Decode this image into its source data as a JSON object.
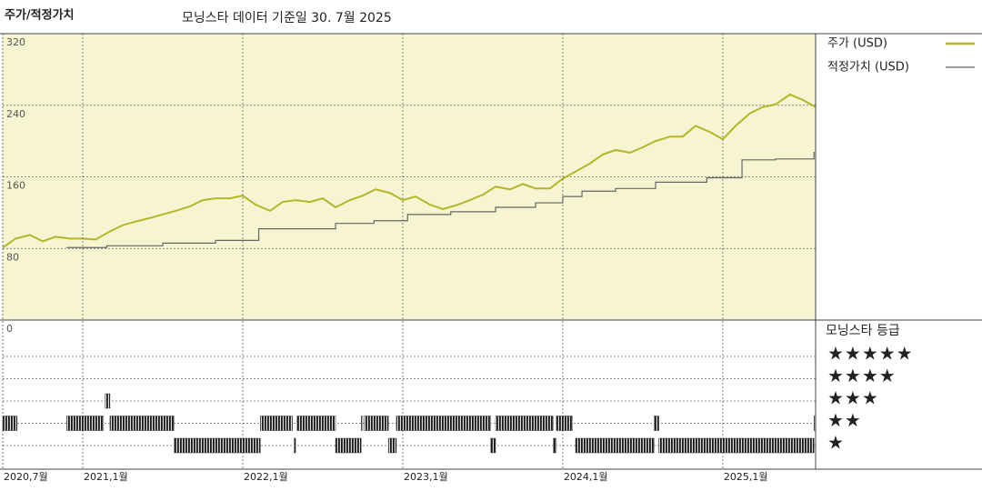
{
  "header": {
    "title": "주가/적정가치",
    "subtitle": "모닝스타 데이터 기준일 30. 7월 2025"
  },
  "chart_data": [
    {
      "type": "line",
      "background": "#f7f4d2",
      "grid": true,
      "xlim": [
        2020.5,
        2025.58
      ],
      "ylim": [
        0,
        320
      ],
      "yticks": [
        0,
        80,
        160,
        240,
        320
      ],
      "x": [
        2020.5,
        2020.58,
        2020.67,
        2020.75,
        2020.83,
        2020.92,
        2021,
        2021.08,
        2021.17,
        2021.25,
        2021.33,
        2021.42,
        2021.5,
        2021.58,
        2021.67,
        2021.75,
        2021.83,
        2021.92,
        2022,
        2022.08,
        2022.17,
        2022.25,
        2022.33,
        2022.42,
        2022.5,
        2022.58,
        2022.67,
        2022.75,
        2022.83,
        2022.92,
        2023,
        2023.08,
        2023.17,
        2023.25,
        2023.33,
        2023.42,
        2023.5,
        2023.58,
        2023.67,
        2023.75,
        2023.83,
        2023.92,
        2024,
        2024.08,
        2024.17,
        2024.25,
        2024.33,
        2024.42,
        2024.5,
        2024.58,
        2024.67,
        2024.75,
        2024.83,
        2024.92,
        2025,
        2025.08,
        2025.17,
        2025.25,
        2025.33,
        2025.42,
        2025.5,
        2025.58
      ],
      "series": [
        {
          "name": "주가 (USD)",
          "color": "#b3b62b",
          "values": [
            81,
            91,
            95,
            88,
            93,
            91,
            91,
            90,
            99,
            106,
            110,
            114,
            118,
            122,
            127,
            134,
            136,
            136,
            139,
            129,
            122,
            132,
            134,
            132,
            136,
            126,
            134,
            139,
            146,
            142,
            134,
            138,
            129,
            124,
            128,
            134,
            140,
            149,
            146,
            152,
            147,
            147,
            158,
            166,
            175,
            185,
            190,
            187,
            193,
            200,
            205,
            205,
            217,
            210,
            202,
            217,
            231,
            238,
            241,
            252,
            246,
            238
          ]
        },
        {
          "name": "적정가치 (USD)",
          "color": "#666666",
          "step": "post",
          "x": [
            2020.9,
            2021.15,
            2021.5,
            2021.83,
            2022.1,
            2022.58,
            2022.82,
            2023.03,
            2023.3,
            2023.58,
            2023.83,
            2024,
            2024.12,
            2024.33,
            2024.58,
            2024.9,
            2025.12,
            2025.33,
            2025.57
          ],
          "values": [
            81,
            83,
            86,
            89,
            102,
            108,
            111,
            118,
            121,
            126,
            131,
            138,
            144,
            147,
            154,
            159,
            179,
            180,
            188
          ]
        }
      ]
    },
    {
      "type": "rating",
      "title": "모닝스타 등급",
      "color": "#1a1a1a",
      "categories": [
        "★★★★★",
        "★★★★",
        "★★★",
        "★★",
        "★"
      ],
      "levels": [
        5,
        4,
        3,
        2,
        1
      ],
      "xlim": [
        2020.5,
        2025.58
      ],
      "xticks": [
        {
          "value": 2020.5,
          "label": "2020,7월"
        },
        {
          "value": 2021,
          "label": "2021,1월"
        },
        {
          "value": 2022,
          "label": "2022,1월"
        },
        {
          "value": 2023,
          "label": "2023,1월"
        },
        {
          "value": 2024,
          "label": "2024,1월"
        },
        {
          "value": 2025,
          "label": "2025,1월"
        }
      ],
      "periods": [
        {
          "stars": 2,
          "from": 2020.5,
          "to": 2020.59
        },
        {
          "stars": 2,
          "from": 2020.9,
          "to": 2021.13
        },
        {
          "stars": 3,
          "from": 2021.14,
          "to": 2021.17
        },
        {
          "stars": 2,
          "from": 2021.17,
          "to": 2021.57
        },
        {
          "stars": 1,
          "from": 2021.57,
          "to": 2022.11
        },
        {
          "stars": 2,
          "from": 2022.11,
          "to": 2022.31
        },
        {
          "stars": 1,
          "from": 2022.32,
          "to": 2022.33
        },
        {
          "stars": 2,
          "from": 2022.34,
          "to": 2022.58
        },
        {
          "stars": 1,
          "from": 2022.58,
          "to": 2022.74
        },
        {
          "stars": 2,
          "from": 2022.74,
          "to": 2022.75
        },
        {
          "stars": 2,
          "from": 2022.76,
          "to": 2022.91
        },
        {
          "stars": 1,
          "from": 2022.91,
          "to": 2022.96
        },
        {
          "stars": 2,
          "from": 2022.96,
          "to": 2023.55
        },
        {
          "stars": 1,
          "from": 2023.55,
          "to": 2023.58
        },
        {
          "stars": 2,
          "from": 2023.58,
          "to": 2023.94
        },
        {
          "stars": 1,
          "from": 2023.94,
          "to": 2023.96
        },
        {
          "stars": 2,
          "from": 2023.96,
          "to": 2024.06
        },
        {
          "stars": 1,
          "from": 2024.08,
          "to": 2024.57
        },
        {
          "stars": 2,
          "from": 2024.57,
          "to": 2024.6
        },
        {
          "stars": 1,
          "from": 2024.6,
          "to": 2025.57
        },
        {
          "stars": 2,
          "from": 2025.57,
          "to": 2025.58
        }
      ]
    }
  ]
}
